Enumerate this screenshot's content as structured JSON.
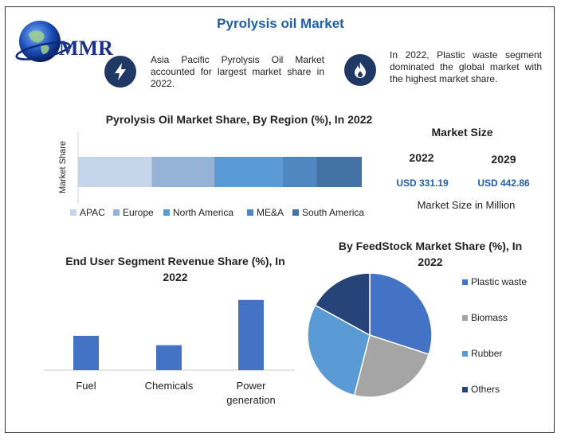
{
  "page": {
    "title": "Pyrolysis oil Market"
  },
  "logo": {
    "text": "MMR"
  },
  "callouts": [
    {
      "icon": "lightning-icon",
      "text": "Asia Pacific Pyrolysis Oil Market accounted for largest market share in 2022."
    },
    {
      "icon": "flame-icon",
      "text": "In 2022, Plastic waste segment dominated the global market with the highest market share."
    }
  ],
  "market_size": {
    "title": "Market Size",
    "year1": "2022",
    "year2": "2029",
    "value1": "USD 331.19",
    "value2": "USD 442.86",
    "note": "Market Size in Million"
  },
  "colors": {
    "title_blue": "#1f5fa8",
    "dark_navy": "#1f3864",
    "bar_blue": "#4472c4"
  },
  "chart_data": [
    {
      "type": "bar",
      "orientation": "horizontal-stacked",
      "title": "Pyrolysis Oil Market Share, By Region (%), In 2022",
      "ylabel": "Market Share",
      "legend_position": "bottom",
      "series": [
        {
          "name": "APAC",
          "value": 26,
          "color": "#c5d5ea"
        },
        {
          "name": "Europe",
          "value": 22,
          "color": "#95b3d7"
        },
        {
          "name": "North America",
          "value": 24,
          "color": "#5b9bd5"
        },
        {
          "name": "ME&A",
          "value": 12,
          "color": "#4f88c0"
        },
        {
          "name": "South America",
          "value": 16,
          "color": "#4472a4"
        }
      ]
    },
    {
      "type": "bar",
      "title": "End User Segment Revenue Share (%), In 2022",
      "categories": [
        "Fuel",
        "Chemicals",
        "Power generation"
      ],
      "values": [
        22,
        16,
        45
      ],
      "ylim": [
        0,
        50
      ]
    },
    {
      "type": "pie",
      "title": "By FeedStock Market Share (%), In 2022",
      "legend_position": "right",
      "categories": [
        "Plastic waste",
        "Biomass",
        "Rubber",
        "Others"
      ],
      "values": [
        30,
        24,
        29,
        17
      ],
      "colors": [
        "#4472c4",
        "#a5a5a5",
        "#5b9bd5",
        "#264478"
      ]
    }
  ]
}
